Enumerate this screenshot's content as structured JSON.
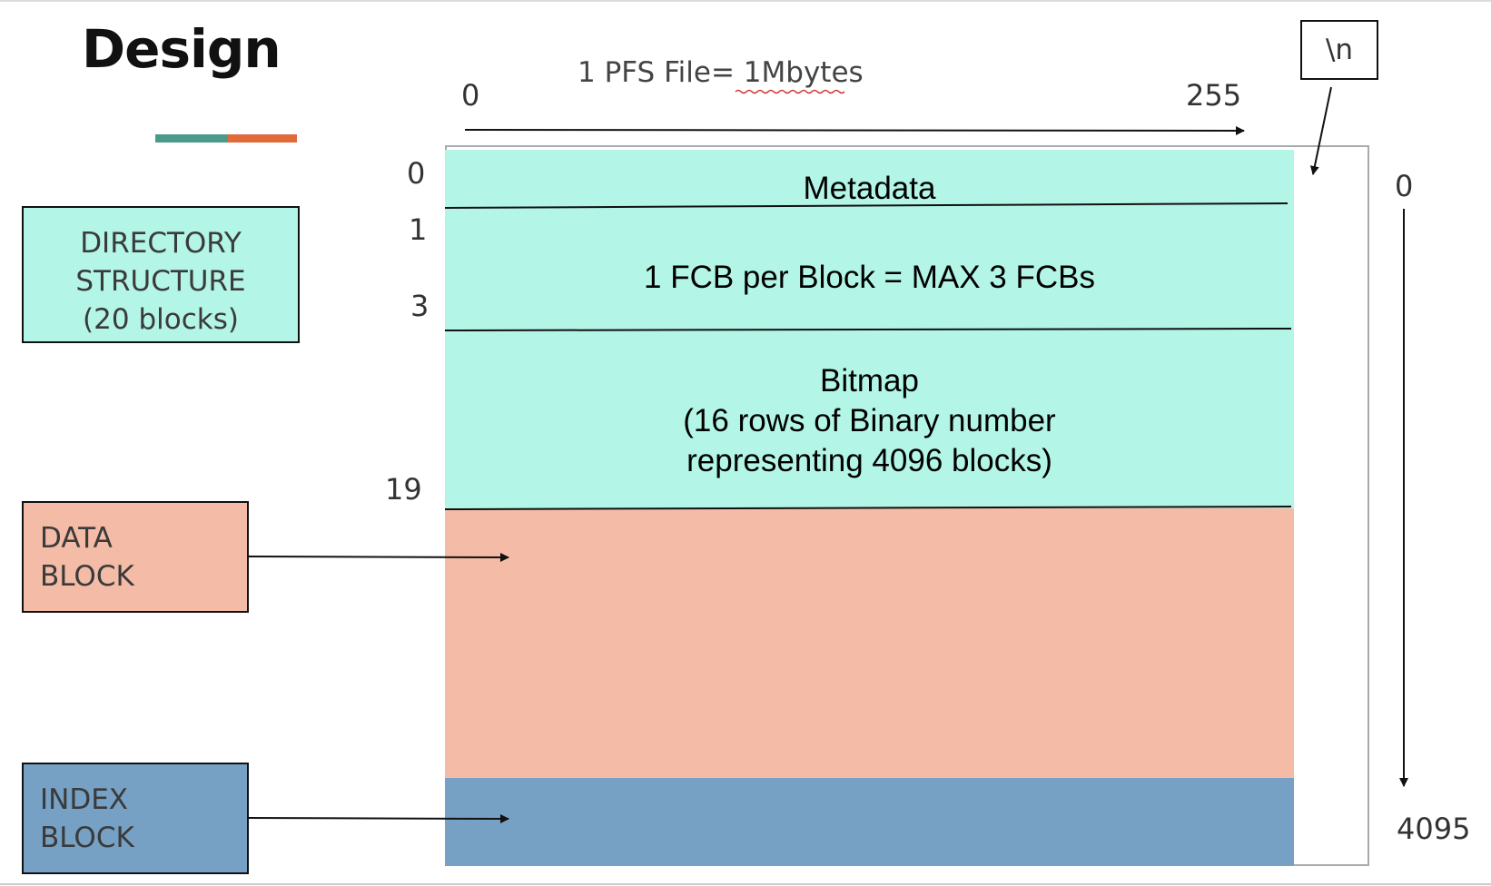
{
  "title": "Design",
  "accent_colors": [
    "#4a9a8a",
    "#e06a3a"
  ],
  "legend": {
    "directory": {
      "lines": [
        "DIRECTORY",
        "STRUCTURE",
        "(20 blocks)"
      ],
      "color": "#b3f5e6"
    },
    "data": {
      "lines": [
        "DATA",
        "BLOCK"
      ],
      "color": "#f4bba7"
    },
    "index": {
      "lines": [
        "INDEX",
        "BLOCK"
      ],
      "color": "#76a1c5"
    }
  },
  "top_axis": {
    "caption": "1 PFS File= 1Mbytes",
    "start": "0",
    "end": "255"
  },
  "right_axis": {
    "start": "0",
    "end": "4095"
  },
  "newline_box": "\\n",
  "row_labels": [
    "0",
    "1",
    "3",
    "19"
  ],
  "regions": {
    "metadata": "Metadata",
    "fcb": "1 FCB per Block = MAX 3 FCBs",
    "bitmap": [
      "Bitmap",
      "(16 rows of Binary number",
      "representing 4096 blocks)"
    ]
  }
}
